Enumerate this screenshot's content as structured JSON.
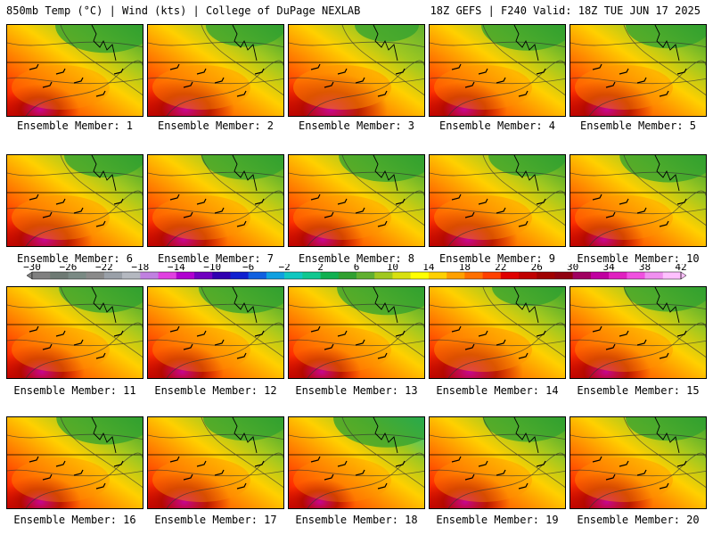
{
  "header": {
    "title": "850mb Temp (°C) | Wind (kts) | College of DuPage NEXLAB",
    "run_info": "18Z GEFS | F240 Valid: 18Z TUE JUN 17 2025"
  },
  "members": [
    {
      "label": "Ensemble Member: 1",
      "warmth": 0.35
    },
    {
      "label": "Ensemble Member: 2",
      "warmth": 0.62
    },
    {
      "label": "Ensemble Member: 3",
      "warmth": 0.85
    },
    {
      "label": "Ensemble Member: 4",
      "warmth": 0.45
    },
    {
      "label": "Ensemble Member: 5",
      "warmth": 0.55
    },
    {
      "label": "Ensemble Member: 6",
      "warmth": 0.6
    },
    {
      "label": "Ensemble Member: 7",
      "warmth": 0.5
    },
    {
      "label": "Ensemble Member: 8",
      "warmth": 0.4
    },
    {
      "label": "Ensemble Member: 9",
      "warmth": 0.65
    },
    {
      "label": "Ensemble Member: 10",
      "warmth": 0.38
    },
    {
      "label": "Ensemble Member: 11",
      "warmth": 0.45
    },
    {
      "label": "Ensemble Member: 12",
      "warmth": 0.42
    },
    {
      "label": "Ensemble Member: 13",
      "warmth": 0.35
    },
    {
      "label": "Ensemble Member: 14",
      "warmth": 0.75
    },
    {
      "label": "Ensemble Member: 15",
      "warmth": 0.5
    },
    {
      "label": "Ensemble Member: 16",
      "warmth": 0.38
    },
    {
      "label": "Ensemble Member: 17",
      "warmth": 0.55
    },
    {
      "label": "Ensemble Member: 18",
      "warmth": 0.25
    },
    {
      "label": "Ensemble Member: 19",
      "warmth": 0.5
    },
    {
      "label": "Ensemble Member: 20",
      "warmth": 0.55
    }
  ],
  "colorbar": {
    "unit_scale": "°C",
    "tick_labels": [
      "−30",
      "−26",
      "−22",
      "−18",
      "−14",
      "−10",
      "−6",
      "−2",
      "2",
      "6",
      "10",
      "14",
      "18",
      "22",
      "26",
      "30",
      "34",
      "38",
      "42"
    ],
    "colors": [
      "#808080",
      "#6e7a74",
      "#7a8a84",
      "#8a8a8a",
      "#9aa0a8",
      "#b4b8c0",
      "#c080e0",
      "#e040e0",
      "#b000d0",
      "#7000c0",
      "#3000b0",
      "#1020d0",
      "#1060e0",
      "#10a0e0",
      "#10c8c0",
      "#10c890",
      "#10b050",
      "#30a030",
      "#60b030",
      "#a0c820",
      "#d8e010",
      "#ffff00",
      "#ffd000",
      "#ffa000",
      "#ff7000",
      "#ff4000",
      "#e00000",
      "#c00000",
      "#a00000",
      "#900010",
      "#a00060",
      "#c000a0",
      "#e020c0",
      "#f050e0",
      "#f090f0",
      "#ffc0ff"
    ]
  }
}
